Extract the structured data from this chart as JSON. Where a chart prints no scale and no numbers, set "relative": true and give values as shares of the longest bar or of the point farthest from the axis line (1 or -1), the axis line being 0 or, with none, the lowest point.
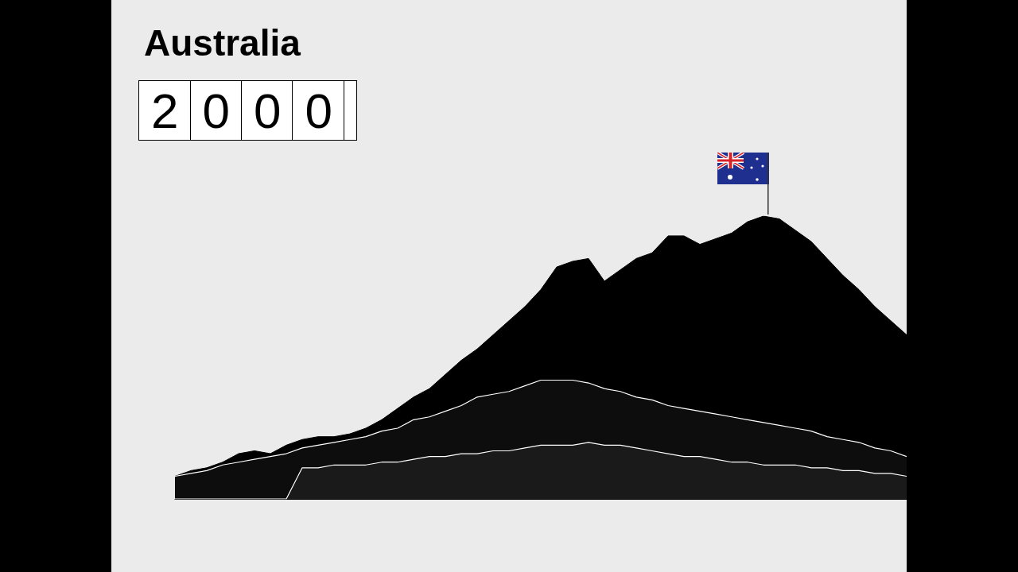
{
  "chart_data": {
    "type": "area",
    "title": "Australia",
    "subtitle": "2000",
    "relative": true,
    "categories": [
      null,
      null,
      null,
      null,
      null,
      null,
      null,
      null,
      null,
      null,
      null,
      null,
      null,
      null,
      null,
      null,
      null,
      null,
      null,
      null,
      null,
      null,
      null,
      null,
      null,
      null,
      null,
      null,
      null,
      null,
      null,
      null,
      null,
      null,
      null,
      null,
      null,
      null,
      null,
      null,
      null,
      null,
      null,
      null,
      null,
      null,
      null
    ],
    "series": [
      {
        "color": "#000000",
        "values": [
          0.08,
          0.1,
          0.11,
          0.13,
          0.16,
          0.17,
          0.16,
          0.19,
          0.21,
          0.22,
          0.22,
          0.23,
          0.25,
          0.28,
          0.32,
          0.36,
          0.39,
          0.44,
          0.49,
          0.53,
          0.58,
          0.63,
          0.68,
          0.74,
          0.82,
          0.84,
          0.85,
          0.77,
          0.81,
          0.85,
          0.87,
          0.93,
          0.93,
          0.9,
          0.92,
          0.94,
          0.98,
          1,
          0.99,
          0.95,
          0.91,
          0.85,
          0.79,
          0.74,
          0.68,
          0.63,
          0.58
        ]
      },
      {
        "color": "#0d0d0d",
        "values": [
          0.08,
          0.09,
          0.1,
          0.12,
          0.13,
          0.14,
          0.15,
          0.16,
          0.18,
          0.19,
          0.2,
          0.21,
          0.22,
          0.24,
          0.25,
          0.28,
          0.29,
          0.31,
          0.33,
          0.36,
          0.37,
          0.38,
          0.4,
          0.42,
          0.42,
          0.42,
          0.41,
          0.39,
          0.38,
          0.36,
          0.35,
          0.33,
          0.32,
          0.31,
          0.3,
          0.29,
          0.28,
          0.27,
          0.26,
          0.25,
          0.24,
          0.22,
          0.21,
          0.2,
          0.18,
          0.17,
          0.15
        ]
      },
      {
        "color": "#1a1a1a",
        "values": [
          0,
          0,
          0,
          0,
          0,
          0,
          0,
          0,
          0.11,
          0.11,
          0.12,
          0.12,
          0.12,
          0.13,
          0.13,
          0.14,
          0.15,
          0.15,
          0.16,
          0.16,
          0.17,
          0.17,
          0.18,
          0.19,
          0.19,
          0.19,
          0.2,
          0.19,
          0.19,
          0.18,
          0.17,
          0.16,
          0.15,
          0.15,
          0.14,
          0.13,
          0.13,
          0.12,
          0.12,
          0.12,
          0.11,
          0.11,
          0.1,
          0.1,
          0.09,
          0.09,
          0.08
        ]
      }
    ]
  }
}
